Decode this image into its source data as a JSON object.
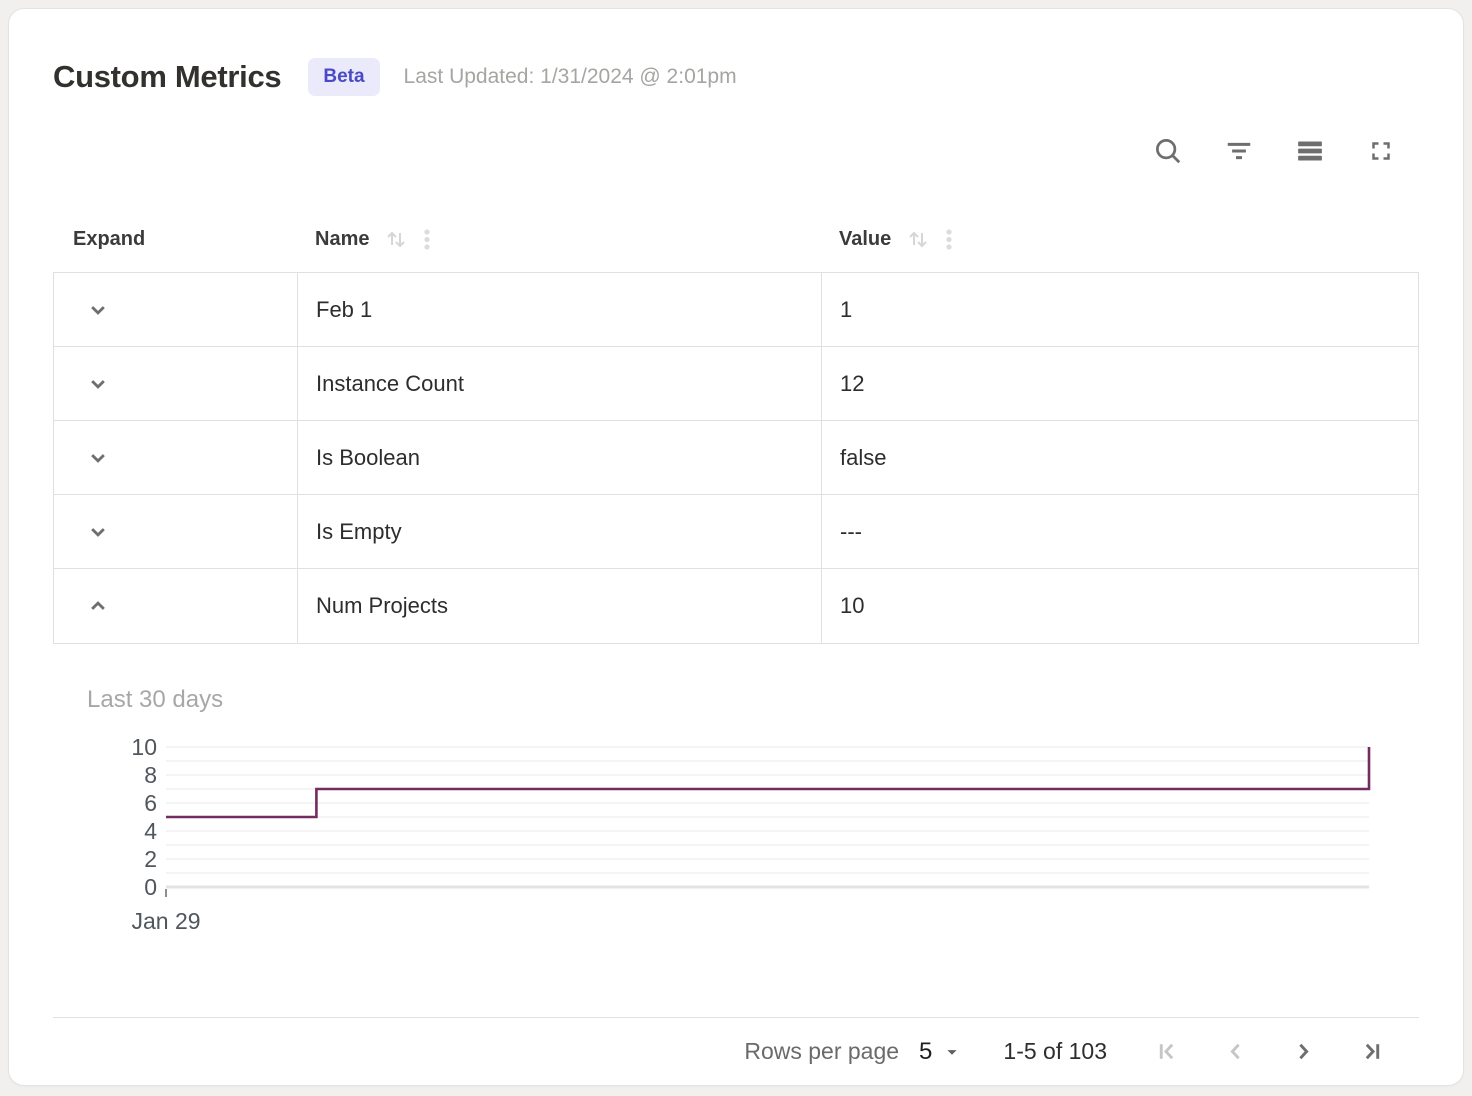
{
  "header": {
    "title": "Custom Metrics",
    "badge": "Beta",
    "last_updated": "Last Updated: 1/31/2024 @ 2:01pm"
  },
  "toolbar": {
    "icons": [
      "search-icon",
      "filter-icon",
      "density-icon",
      "fullscreen-icon"
    ]
  },
  "table": {
    "columns": {
      "expand": "Expand",
      "name": "Name",
      "value": "Value"
    },
    "rows": [
      {
        "name": "Feb 1",
        "value": "1",
        "expanded": false
      },
      {
        "name": "Instance Count",
        "value": "12",
        "expanded": false
      },
      {
        "name": "Is Boolean",
        "value": "false",
        "expanded": false
      },
      {
        "name": "Is Empty",
        "value": "---",
        "expanded": false
      },
      {
        "name": "Num Projects",
        "value": "10",
        "expanded": true
      }
    ]
  },
  "chart_data": {
    "type": "line",
    "step": true,
    "title": "Last 30 days",
    "xlabel": "",
    "ylabel": "",
    "ylim": [
      0,
      10
    ],
    "y_ticks": [
      0,
      2,
      4,
      6,
      8,
      10
    ],
    "x_tick_labels": [
      "Jan 29"
    ],
    "grid": true,
    "legend": false,
    "line_color": "#742b61",
    "series": [
      {
        "name": "Num Projects",
        "points": [
          {
            "x_frac": 0.0,
            "y": 5
          },
          {
            "x_frac": 0.125,
            "y": 5
          },
          {
            "x_frac": 0.125,
            "y": 7
          },
          {
            "x_frac": 1.0,
            "y": 7
          },
          {
            "x_frac": 1.0,
            "y": 10
          }
        ]
      }
    ]
  },
  "pagination": {
    "rows_per_page_label": "Rows per page",
    "rows_per_page_value": "5",
    "range_label": "1-5 of 103",
    "nav": {
      "first_enabled": false,
      "prev_enabled": false,
      "next_enabled": true,
      "last_enabled": true
    }
  },
  "colors": {
    "accent_line": "#742b61",
    "badge_bg": "#eaeafb",
    "badge_text": "#4a4ac4",
    "page_bg": "#f1f0ee",
    "grid_border": "#e0e0e0"
  }
}
